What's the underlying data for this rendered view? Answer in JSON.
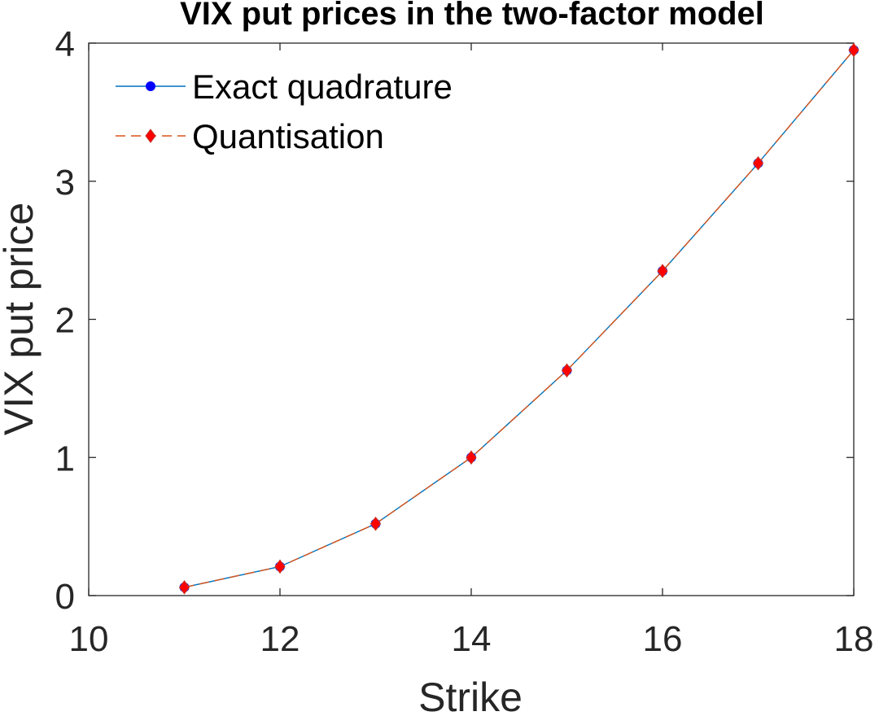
{
  "chart_data": {
    "type": "line",
    "title": "VIX put prices in the two-factor model",
    "xlabel": "Strike",
    "ylabel": "VIX put price",
    "xlim": [
      10,
      18
    ],
    "ylim": [
      0,
      4
    ],
    "xticks": [
      10,
      12,
      14,
      16,
      18
    ],
    "yticks": [
      0,
      1,
      2,
      3,
      4
    ],
    "grid": false,
    "legend_position": "top-left",
    "x": [
      11,
      12,
      13,
      14,
      15,
      16,
      17,
      18
    ],
    "series": [
      {
        "name": "Exact quadrature",
        "values": [
          0.06,
          0.21,
          0.52,
          1.0,
          1.63,
          2.35,
          3.13,
          3.95
        ],
        "color": "#0072BD",
        "marker": "circle",
        "marker_color": "#0000FF",
        "line_style": "solid"
      },
      {
        "name": "Quantisation",
        "values": [
          0.06,
          0.21,
          0.52,
          1.0,
          1.63,
          2.35,
          3.13,
          3.95
        ],
        "color": "#D95319",
        "marker": "diamond",
        "marker_color": "#FF0000",
        "line_style": "dashed"
      }
    ]
  }
}
